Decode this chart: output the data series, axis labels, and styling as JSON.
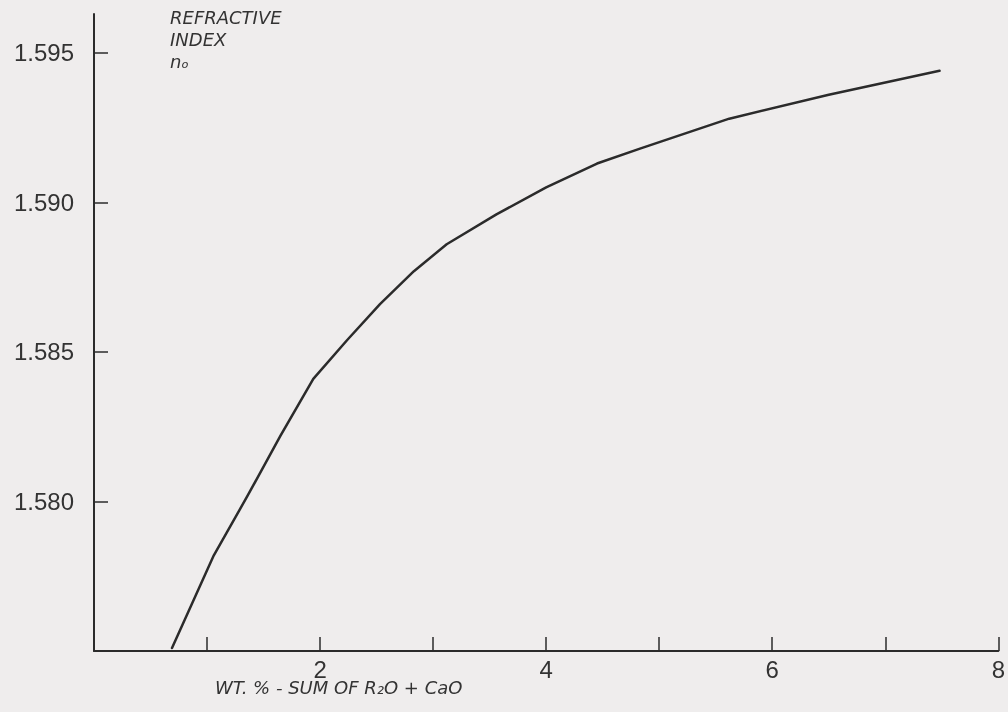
{
  "chart_data": {
    "type": "line",
    "xlabel": "WT. % - SUM OF R₂O + CaO",
    "ylabel": "REFRACTIVE INDEX nₒ",
    "x": [
      0.69,
      1.06,
      1.36,
      1.65,
      1.94,
      2.24,
      2.53,
      2.83,
      3.12,
      3.56,
      4.0,
      4.45,
      4.83,
      5.62,
      6.5,
      7.48
    ],
    "values": [
      1.5751,
      1.5782,
      1.5802,
      1.5822,
      1.5841,
      1.5854,
      1.5866,
      1.5877,
      1.5886,
      1.5896,
      1.5905,
      1.5913,
      1.5918,
      1.5928,
      1.5936,
      1.5944
    ],
    "color": "#2b2b2b",
    "xlim": [
      0,
      8
    ],
    "xticks": [
      {
        "value": 1,
        "label": null
      },
      2,
      {
        "value": 3,
        "label": null
      },
      4,
      {
        "value": 5,
        "label": null
      },
      6,
      {
        "value": 7,
        "label": null
      },
      8
    ],
    "ylim": [
      1.575,
      1.5963
    ],
    "yticks": [
      {
        "value": 1.58,
        "label": "1.580"
      },
      1.585,
      {
        "value": 1.59,
        "label": "1.590"
      },
      1.595
    ],
    "grid": false,
    "marker": "none",
    "line_style": "solid"
  }
}
